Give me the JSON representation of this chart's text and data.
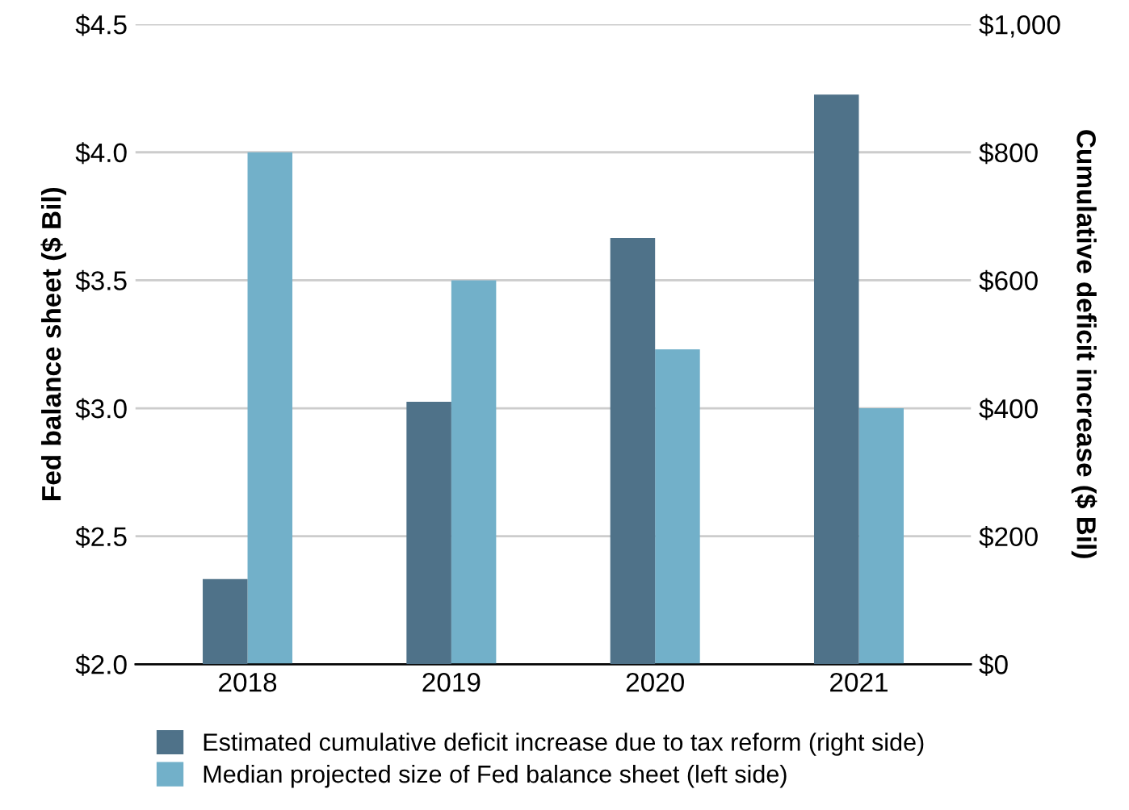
{
  "chart_data": {
    "type": "bar",
    "ylabel": "Fed balance sheet ($ Bil)",
    "y2label": "Cumulative deficit increase ($ Bil)",
    "categories": [
      "2018",
      "2019",
      "2020",
      "2021"
    ],
    "series": [
      {
        "name": "Estimated cumulative deficit increase due to tax reform (right side)",
        "color": "#4f7289",
        "axis": "y2",
        "values": [
          133,
          410,
          666,
          890
        ]
      },
      {
        "name": "Median projected size of Fed balance sheet (left side)",
        "color": "#72b0c9",
        "values": [
          4.0,
          3.5,
          3.23,
          3.0
        ]
      }
    ],
    "ylim": [
      2.0,
      4.5
    ],
    "yticks": [
      {
        "value": 2.0,
        "label": "$2.0"
      },
      {
        "value": 2.5,
        "label": "$2.5"
      },
      {
        "value": 3.0,
        "label": "$3.0"
      },
      {
        "value": 3.5,
        "label": "$3.5"
      },
      {
        "value": 4.0,
        "label": "$4.0"
      },
      {
        "value": 4.5,
        "label": "$4.5"
      }
    ],
    "y2lim": [
      0,
      1000
    ],
    "y2ticks": [
      {
        "value": 0,
        "label": "$0"
      },
      {
        "value": 200,
        "label": "$200"
      },
      {
        "value": 400,
        "label": "$400"
      },
      {
        "value": 600,
        "label": "$600"
      },
      {
        "value": 800,
        "label": "$800"
      },
      {
        "value": 1000,
        "label": "$1,000"
      }
    ],
    "grid": "y",
    "legend": "bottom"
  }
}
